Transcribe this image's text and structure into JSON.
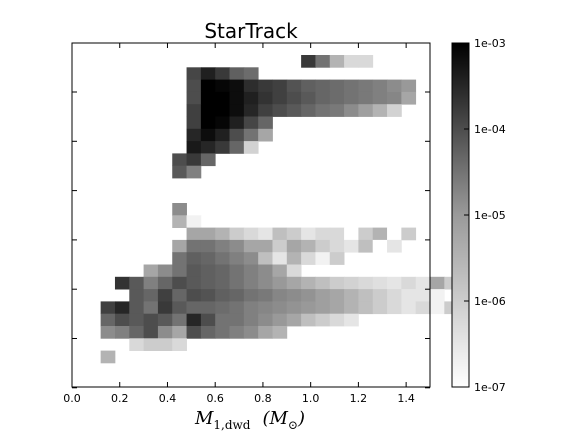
{
  "chart_data": {
    "type": "heatmap",
    "title": "StarTrack",
    "xlabel": "M",
    "xlabel_sub": "1,dwd",
    "xlabel_unit_open": "(M",
    "xlabel_unit_sub": "⊙",
    "xlabel_unit_close": ")",
    "xlim": [
      0.0,
      1.5
    ],
    "x_ticks": [
      "0.0",
      "0.2",
      "0.4",
      "0.6",
      "0.8",
      "1.0",
      "1.2",
      "1.4"
    ],
    "y_tick_count": 7,
    "color_scale": "log",
    "color_range": [
      1e-07,
      0.001
    ],
    "colorbar_ticks": [
      "1e-03",
      "1e-04",
      "1e-05",
      "1e-06",
      "1e-07"
    ],
    "colormap": "gray_r",
    "grid": false,
    "cell_width": 0.06,
    "upper_region_rows": [
      {
        "x_start": 0.96,
        "values": [
          -3.9,
          -4.8,
          -5.8,
          -6.4,
          -6.4
        ]
      },
      {
        "x_start": 0.48,
        "values": [
          -4.1,
          -3.5,
          -3.9,
          -4.5,
          -4.7
        ]
      },
      {
        "x_start": 0.48,
        "values": [
          -4.2,
          -3.0,
          -3.1,
          -3.2,
          -3.7,
          -3.9,
          -4.0,
          -4.3,
          -4.5,
          -4.6,
          -4.7,
          -4.8,
          -4.9,
          -5.0,
          -5.2,
          -5.4
        ]
      },
      {
        "x_start": 0.48,
        "values": [
          -4.2,
          -3.0,
          -3.0,
          -3.2,
          -3.5,
          -3.8,
          -4.0,
          -4.2,
          -4.4,
          -4.6,
          -4.7,
          -4.8,
          -4.9,
          -5.0,
          -5.1,
          -5.6
        ]
      },
      {
        "x_start": 0.48,
        "values": [
          -4.0,
          -3.0,
          -3.0,
          -3.2,
          -3.6,
          -4.0,
          -4.2,
          -4.4,
          -4.6,
          -4.8,
          -4.9,
          -5.2,
          -5.5,
          -5.8,
          -6.3
        ]
      },
      {
        "x_start": 0.48,
        "values": [
          -4.0,
          -3.0,
          -3.1,
          -3.5,
          -4.1,
          -4.6
        ]
      },
      {
        "x_start": 0.48,
        "values": [
          -3.6,
          -3.2,
          -3.5,
          -4.2,
          -4.8,
          -5.6
        ]
      },
      {
        "x_start": 0.48,
        "values": [
          -3.4,
          -3.6,
          -3.9,
          -4.6,
          -6.3
        ]
      },
      {
        "x_start": 0.42,
        "values": [
          -4.2,
          -3.9,
          -4.6
        ]
      },
      {
        "x_start": 0.42,
        "values": [
          -4.4,
          -5.0
        ]
      }
    ],
    "lower_region_rows": [
      {
        "x_start": 0.42,
        "values": [
          -5.2
        ]
      },
      {
        "x_start": 0.42,
        "values": [
          -5.8,
          -6.8
        ]
      },
      {
        "x_start": 0.48,
        "values": [
          -5.6,
          -5.6,
          -5.8,
          -6.2,
          -6.4,
          -6.6,
          -6.0,
          -6.2,
          -6.6,
          -6.4,
          -6.4,
          -7.0,
          -6.2,
          -5.8,
          -7.0,
          -6.2
        ]
      },
      {
        "x_start": 0.42,
        "values": [
          -5.6,
          -4.8,
          -4.8,
          -5.0,
          -5.2,
          -5.6,
          -5.6,
          -6.2,
          -5.6,
          -5.8,
          -6.2,
          -6.4,
          -6.6,
          -6.0,
          -7.0,
          -6.6
        ]
      },
      {
        "x_start": 0.42,
        "values": [
          -4.8,
          -4.5,
          -4.6,
          -4.8,
          -5.0,
          -5.2,
          -6.0,
          -6.6,
          -5.8,
          -6.4,
          -6.8,
          -6.2
        ]
      },
      {
        "x_start": 0.3,
        "values": [
          -5.6,
          -5.2,
          -4.8,
          -4.4,
          -4.5,
          -4.6,
          -4.8,
          -5.0,
          -5.2,
          -5.6,
          -6.4
        ]
      },
      {
        "x_start": 0.18,
        "values": [
          -3.8,
          -4.4,
          -5.0,
          -4.6,
          -4.2,
          -4.4,
          -4.5,
          -4.6,
          -4.8,
          -5.0,
          -5.2,
          -5.4,
          -5.6,
          -5.8,
          -6.0,
          -6.2,
          -6.3,
          -6.4,
          -6.5,
          -6.6,
          -6.4,
          -6.6,
          -5.6,
          -6.2
        ]
      },
      {
        "x_start": 0.24,
        "values": [
          -4.4,
          -4.6,
          -4.0,
          -4.6,
          -4.2,
          -4.3,
          -4.5,
          -4.6,
          -4.8,
          -4.9,
          -5.1,
          -5.2,
          -5.3,
          -5.5,
          -5.6,
          -5.8,
          -6.0,
          -6.2,
          -6.4,
          -6.6,
          -6.6,
          -6.8
        ]
      },
      {
        "x_start": 0.12,
        "values": [
          -4.0,
          -3.6,
          -4.4,
          -4.8,
          -3.9,
          -4.4,
          -4.6,
          -4.6,
          -4.7,
          -4.8,
          -5.0,
          -5.1,
          -5.2,
          -5.3,
          -5.4,
          -5.5,
          -5.6,
          -5.8,
          -6.0,
          -6.2,
          -6.4,
          -6.6,
          -6.4,
          -6.8,
          -6.2
        ]
      },
      {
        "x_start": 0.12,
        "values": [
          -4.6,
          -4.2,
          -4.4,
          -4.2,
          -4.4,
          -4.8,
          -3.6,
          -4.2,
          -4.8,
          -4.8,
          -5.0,
          -5.2,
          -5.4,
          -5.6,
          -6.0,
          -6.2,
          -6.4,
          -6.6
        ]
      },
      {
        "x_start": 0.12,
        "values": [
          -5.2,
          -5.0,
          -4.6,
          -4.2,
          -5.2,
          -5.6,
          -4.2,
          -4.6,
          -4.8,
          -5.0,
          -5.2,
          -5.6,
          -5.8
        ]
      },
      {
        "x_start": 0.24,
        "values": [
          -6.4,
          -6.2,
          -6.2,
          -6.4
        ]
      },
      {
        "x_start": 0.12,
        "values": [
          -5.8
        ]
      }
    ]
  }
}
